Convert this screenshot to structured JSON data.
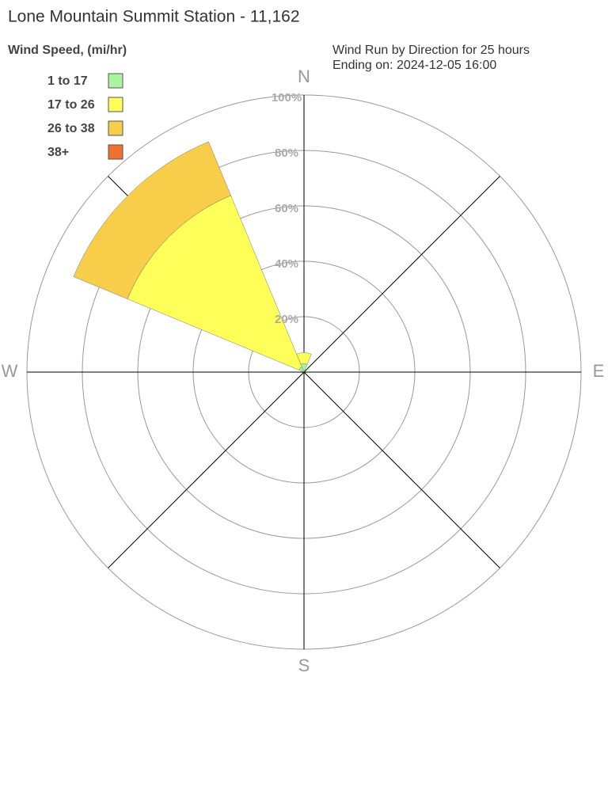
{
  "chart_data": {
    "type": "windrose",
    "title": "Lone Mountain Summit Station - 11,162",
    "legend_title": "Wind Speed, (mi/hr)",
    "subtitle": [
      "Wind Run by Direction for 25 hours",
      "Ending on: 2024-12-05 16:00"
    ],
    "directions": [
      "N",
      null,
      "E",
      null,
      "S",
      null,
      "W",
      null
    ],
    "rlim": [
      0,
      100
    ],
    "rticks": [
      {
        "value": 20,
        "label": "20%"
      },
      {
        "value": 40,
        "label": "40%"
      },
      {
        "value": 60,
        "label": "60%"
      },
      {
        "value": 80,
        "label": "80%"
      },
      {
        "value": 100,
        "label": "100%"
      }
    ],
    "series": [
      {
        "name": "1 to 17",
        "color": "#aaf5a0",
        "values": [
          3,
          0,
          0,
          0,
          0,
          0,
          0,
          2
        ]
      },
      {
        "name": "17 to 26",
        "color": "#ffff5a",
        "values": [
          4,
          0,
          0,
          0,
          0,
          0,
          0,
          67
        ]
      },
      {
        "name": "26 to 38",
        "color": "#f7cd4a",
        "values": [
          0,
          0,
          0,
          0,
          0,
          0,
          0,
          21
        ]
      },
      {
        "name": "38+",
        "color": "#f07030",
        "values": [
          0,
          0,
          0,
          0,
          0,
          0,
          0,
          0
        ]
      }
    ]
  }
}
